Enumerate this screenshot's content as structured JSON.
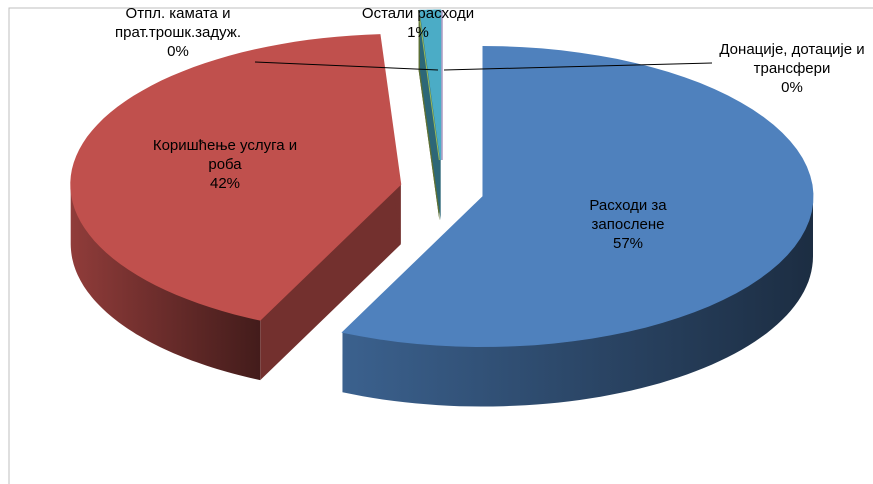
{
  "chart_data": {
    "type": "pie",
    "categories": [
      "Расходи за запослене",
      "Коришћење услуга и роба",
      "Отпл. камата и прат.трошк.задуж.",
      "Остали расходи",
      "Донације, дотације и трансфери"
    ],
    "values": [
      57,
      42,
      0,
      1,
      0
    ],
    "value_labels": [
      "57%",
      "42%",
      "0%",
      "1%",
      "0%"
    ],
    "colors": [
      "#4f81bd",
      "#c0504d",
      "#9bbb59",
      "#4bacc6",
      "#8064a2"
    ]
  }
}
